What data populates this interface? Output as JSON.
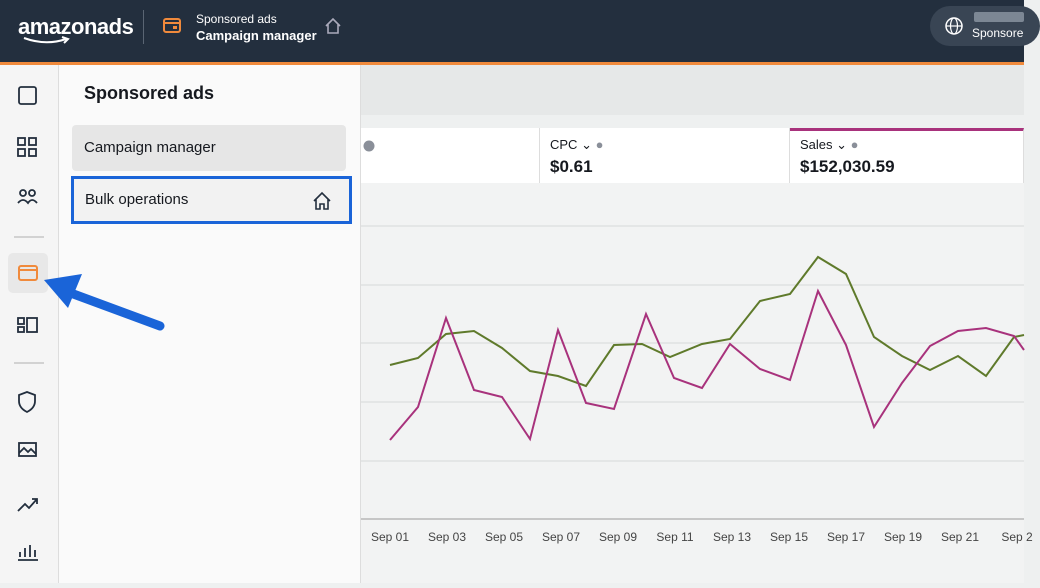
{
  "header": {
    "brand": "amazonads",
    "section": "Sponsored ads",
    "page": "Campaign manager",
    "account": "Sponsore"
  },
  "flyout": {
    "title": "Sponsored ads",
    "items": [
      "Campaign manager",
      "Bulk operations"
    ]
  },
  "metrics": [
    {
      "label": "CPC",
      "value": "$0.61"
    },
    {
      "label": "Sales",
      "value": "$152,030.59"
    }
  ],
  "x_labels": [
    "Sep 01",
    "Sep 03",
    "Sep 05",
    "Sep 07",
    "Sep 09",
    "Sep 11",
    "Sep 13",
    "Sep 15",
    "Sep 17",
    "Sep 19",
    "Sep 21",
    "Sep 2"
  ]
}
